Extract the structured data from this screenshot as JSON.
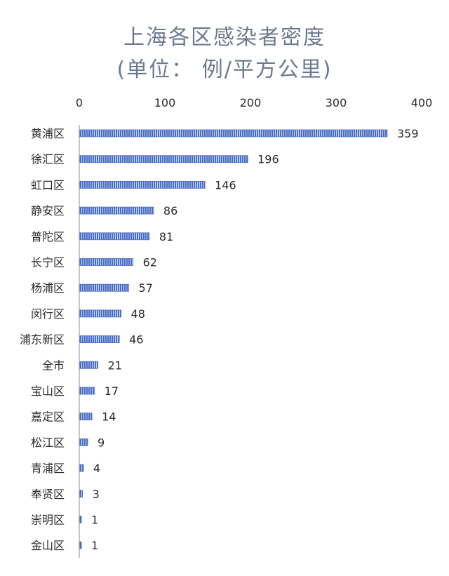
{
  "chart_data": {
    "type": "bar",
    "orientation": "horizontal",
    "title": "上海各区感染者密度",
    "subtitle": "(单位： 例/平方公里)",
    "categories": [
      "黄浦区",
      "徐汇区",
      "虹口区",
      "静安区",
      "普陀区",
      "长宁区",
      "杨浦区",
      "闵行区",
      "浦东新区",
      "全市",
      "宝山区",
      "嘉定区",
      "松江区",
      "青浦区",
      "奉贤区",
      "崇明区",
      "金山区"
    ],
    "values": [
      359,
      196,
      146,
      86,
      81,
      62,
      57,
      48,
      46,
      21,
      17,
      14,
      9,
      4,
      3,
      1,
      1
    ],
    "xlim": [
      0,
      400
    ],
    "x_ticks": [
      0,
      100,
      200,
      300,
      400
    ],
    "x_axis_position": "top",
    "grid": false,
    "legend": "none",
    "bar_color": "#4a6fc4",
    "bar_pattern": "vertical-stripes"
  }
}
